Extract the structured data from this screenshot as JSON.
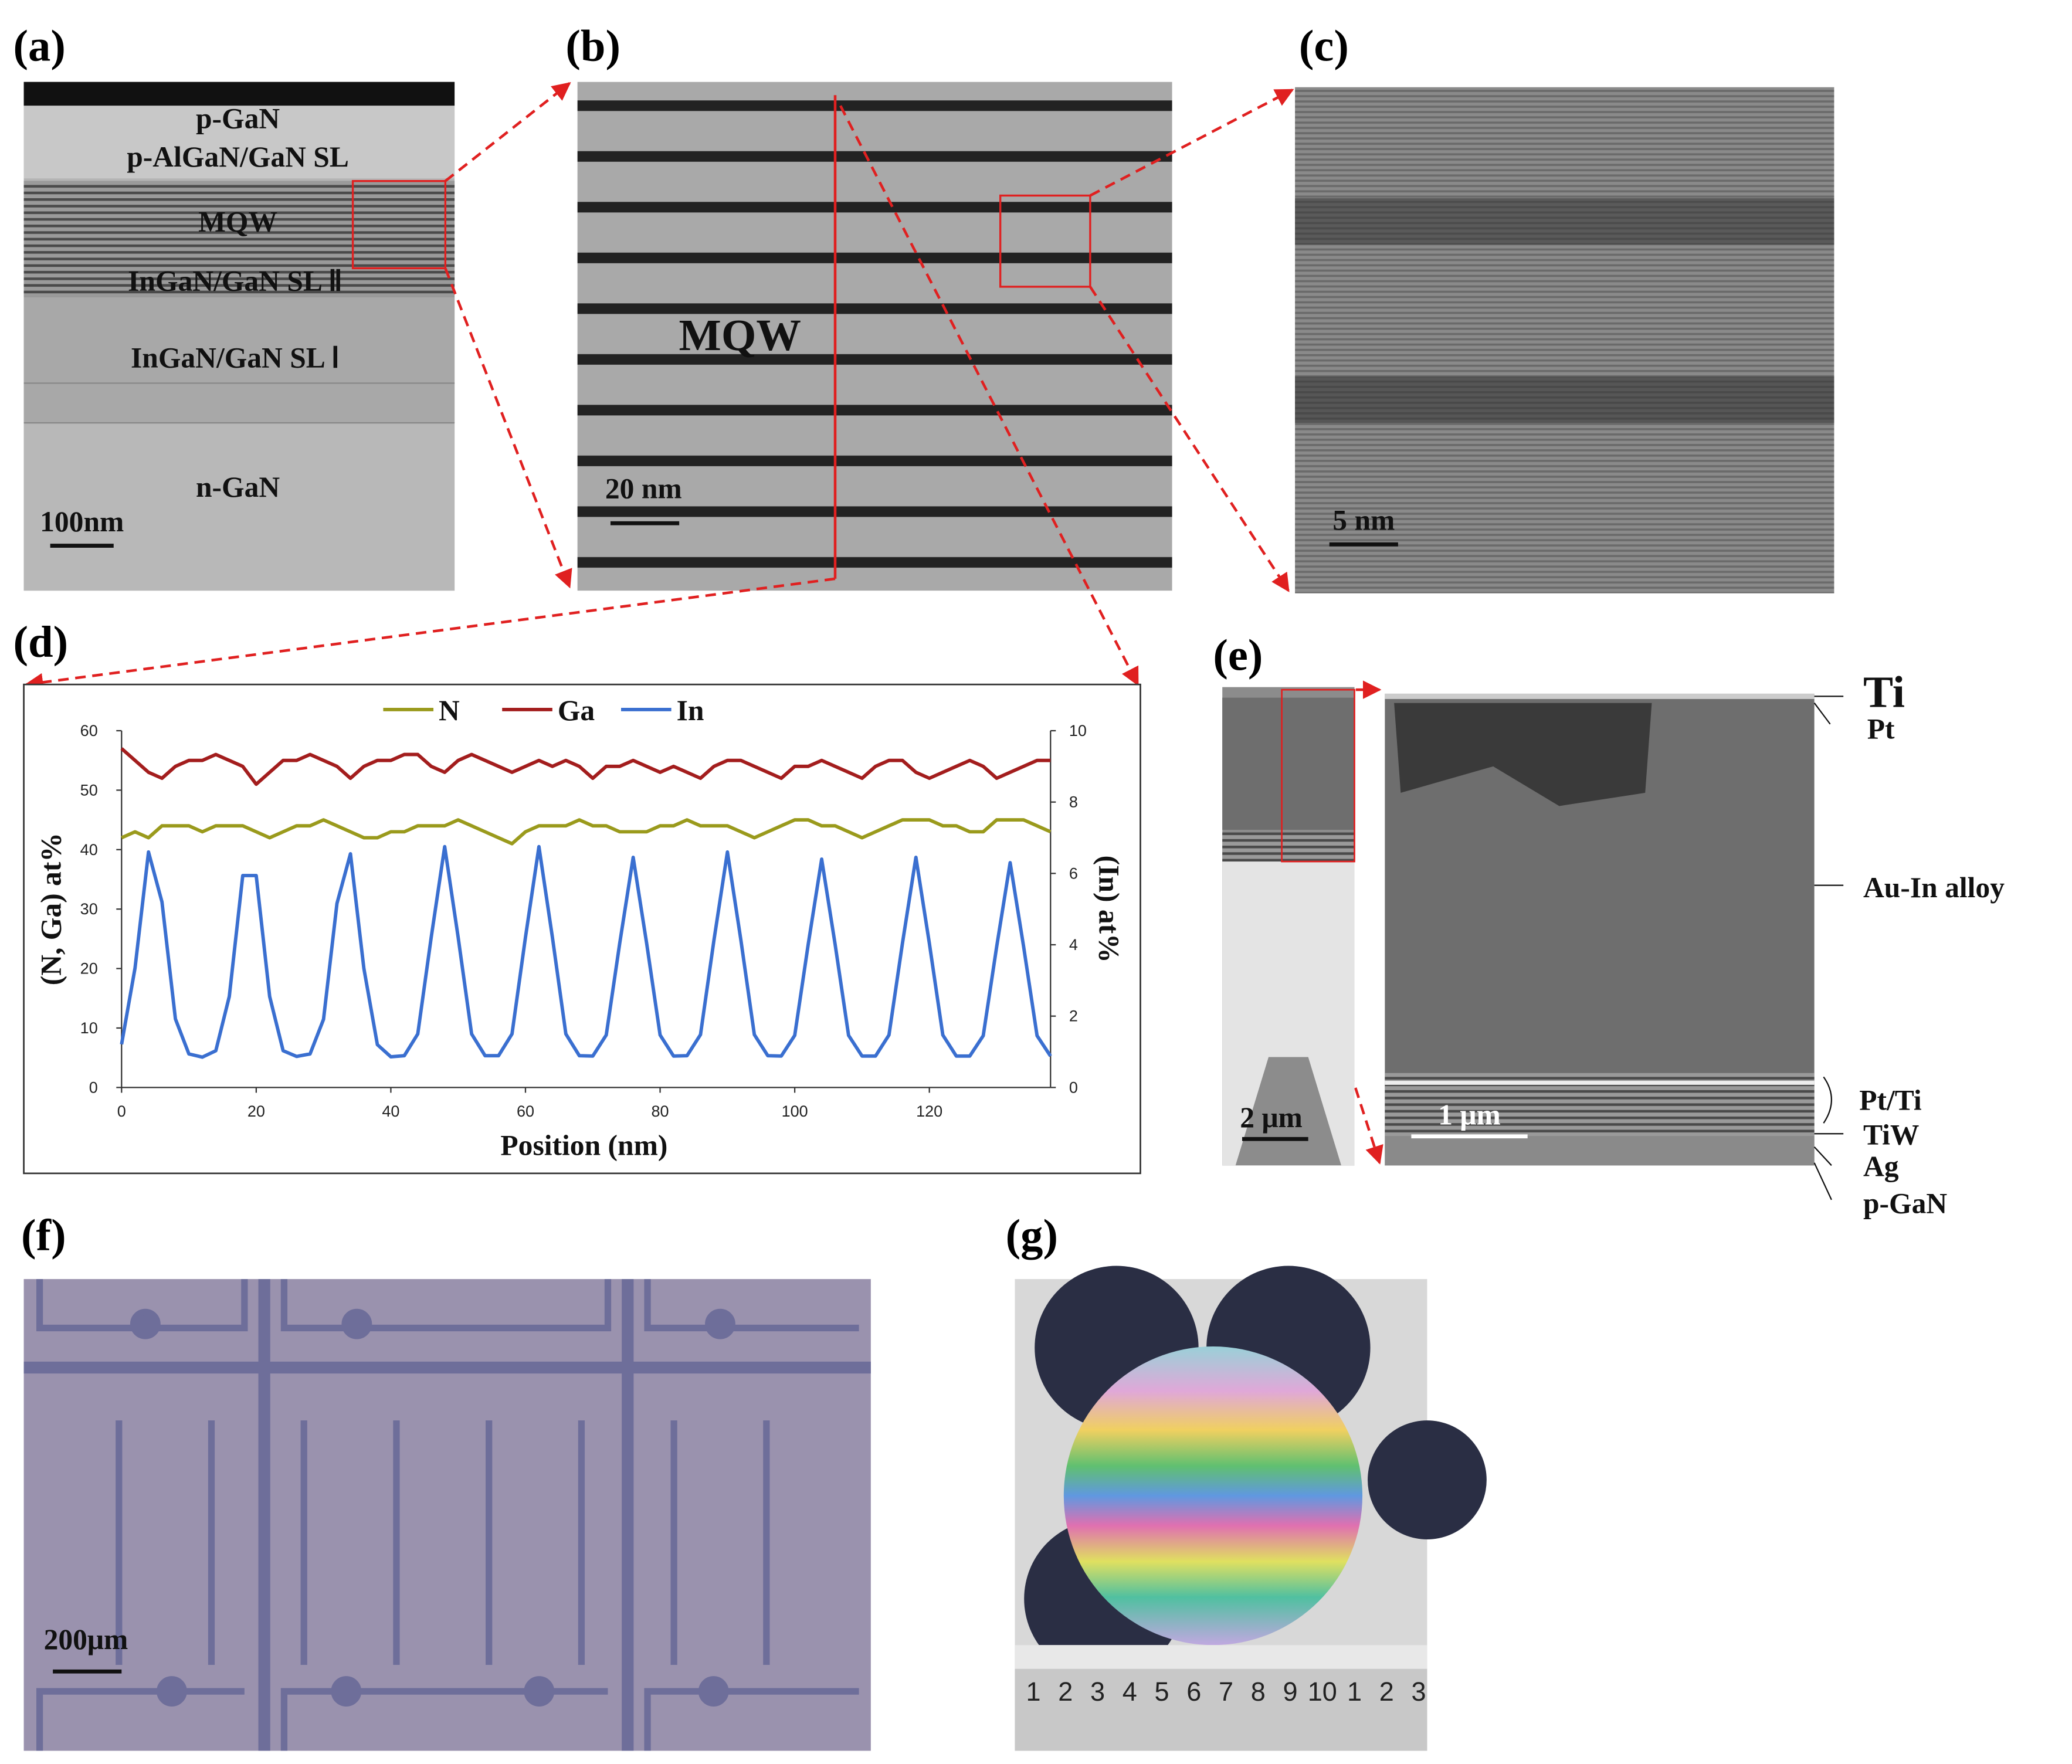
{
  "panels": [
    {
      "label": "(a)",
      "texts": [
        "p-GaN",
        "p-AlGaN/GaN SL",
        "MQW",
        "InGaN/GaN SL Ⅱ",
        "InGaN/GaN SL Ⅰ",
        "n-GaN"
      ],
      "scale_bar": "100nm"
    },
    {
      "label": "(b)",
      "texts": [
        "MQW"
      ],
      "scale_bar": "20 nm"
    },
    {
      "label": "(c)",
      "scale_bar": "5 nm"
    },
    {
      "label": "(d)"
    },
    {
      "label": "(e)",
      "texts": [
        "Ti",
        "Pt",
        "Au-In alloy",
        "Pt/Ti",
        "TiW",
        "Ag",
        "p-GaN"
      ],
      "scale_bars": [
        "2 μm",
        "1 μm"
      ]
    },
    {
      "label": "(f)",
      "scale_bar": "200μm"
    },
    {
      "label": "(g)",
      "ruler": [
        "1",
        "2",
        "3",
        "4",
        "5",
        "6",
        "7",
        "8",
        "9",
        "10",
        "1",
        "2",
        "3"
      ]
    }
  ],
  "chart_data": {
    "type": "line",
    "xlabel": "Position (nm)",
    "ylabel": "(N, Ga) at%",
    "y2label": "(In) at%",
    "x": [
      0,
      2,
      4,
      6,
      8,
      10,
      12,
      14,
      16,
      18,
      20,
      22,
      24,
      26,
      28,
      30,
      32,
      34,
      36,
      38,
      40,
      42,
      44,
      46,
      48,
      50,
      52,
      54,
      56,
      58,
      60,
      62,
      64,
      66,
      68,
      70,
      72,
      74,
      76,
      78,
      80,
      82,
      84,
      86,
      88,
      90,
      92,
      94,
      96,
      98,
      100,
      102,
      104,
      106,
      108,
      110,
      112,
      114,
      116,
      118,
      120,
      122,
      124,
      126,
      128,
      130,
      132,
      134,
      136,
      138
    ],
    "xlim": [
      0,
      138
    ],
    "xticks": [
      0,
      20,
      40,
      60,
      80,
      100,
      120
    ],
    "ylim": [
      0,
      60
    ],
    "yticks": [
      0,
      10,
      20,
      30,
      40,
      50,
      60
    ],
    "y2lim": [
      0,
      10
    ],
    "y2ticks": [
      0,
      2,
      4,
      6,
      8,
      10
    ],
    "series": [
      {
        "name": "N",
        "color": "#9a9a1c",
        "values": [
          42,
          43,
          42,
          44,
          44,
          44,
          43,
          44,
          44,
          44,
          43,
          42,
          43,
          44,
          44,
          45,
          44,
          43,
          42,
          42,
          43,
          43,
          44,
          44,
          44,
          45,
          44,
          43,
          42,
          41,
          43,
          44,
          44,
          44,
          45,
          44,
          44,
          43,
          43,
          43,
          44,
          44,
          45,
          44,
          44,
          44,
          43,
          42,
          43,
          44,
          45,
          45,
          44,
          44,
          43,
          42,
          43,
          44,
          45,
          45,
          45,
          44,
          44,
          43,
          43,
          45,
          45,
          45,
          44,
          43
        ]
      },
      {
        "name": "Ga",
        "color": "#a31d1d",
        "values": [
          57,
          55,
          53,
          52,
          54,
          55,
          55,
          56,
          55,
          54,
          51,
          53,
          55,
          55,
          56,
          55,
          54,
          52,
          54,
          55,
          55,
          56,
          56,
          54,
          53,
          55,
          56,
          55,
          54,
          53,
          54,
          55,
          54,
          55,
          54,
          52,
          54,
          54,
          55,
          54,
          53,
          54,
          53,
          52,
          54,
          55,
          55,
          54,
          53,
          52,
          54,
          54,
          55,
          54,
          53,
          52,
          54,
          55,
          55,
          53,
          52,
          53,
          54,
          55,
          54,
          52,
          53,
          54,
          55,
          55
        ]
      },
      {
        "name": "In",
        "color": "#3a6fd0",
        "axis": "y2",
        "values": [
          1.21,
          3.35,
          6.6,
          5.2,
          1.92,
          0.94,
          0.85,
          1.03,
          2.55,
          5.94,
          5.94,
          2.55,
          1.03,
          0.87,
          0.94,
          1.91,
          5.16,
          6.55,
          3.33,
          1.2,
          0.86,
          0.89,
          1.5,
          4.21,
          6.75,
          4.21,
          1.5,
          0.89,
          0.89,
          1.5,
          4.21,
          6.75,
          4.21,
          1.5,
          0.89,
          0.88,
          1.47,
          4.04,
          6.45,
          4.04,
          1.47,
          0.88,
          0.89,
          1.48,
          4.13,
          6.6,
          4.13,
          1.48,
          0.89,
          0.88,
          1.46,
          4.01,
          6.4,
          4.01,
          1.46,
          0.88,
          0.88,
          1.47,
          4.04,
          6.45,
          4.04,
          1.47,
          0.88,
          0.88,
          1.45,
          3.95,
          6.3,
          3.95,
          1.45,
          0.88
        ]
      }
    ]
  }
}
